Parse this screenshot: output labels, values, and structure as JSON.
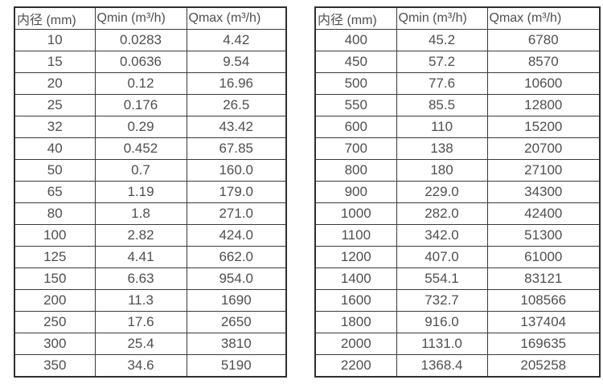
{
  "colors": {
    "background": "#ffffff",
    "table_border": "#2f2f2f",
    "grid_line": "#3a3a3a",
    "text": "#4f4f4f"
  },
  "tables": [
    {
      "name": "flow-rate-table-small-diameters",
      "headers": [
        "内径 (mm)",
        "Qmin (m³/h)",
        "Qmax (m³/h)"
      ],
      "rows": [
        [
          "10",
          "0.0283",
          "4.42"
        ],
        [
          "15",
          "0.0636",
          "9.54"
        ],
        [
          "20",
          "0.12",
          "16.96"
        ],
        [
          "25",
          "0.176",
          "26.5"
        ],
        [
          "32",
          "0.29",
          "43.42"
        ],
        [
          "40",
          "0.452",
          "67.85"
        ],
        [
          "50",
          "0.7",
          "160.0"
        ],
        [
          "65",
          "1.19",
          "179.0"
        ],
        [
          "80",
          "1.8",
          "271.0"
        ],
        [
          "100",
          "2.82",
          "424.0"
        ],
        [
          "125",
          "4.41",
          "662.0"
        ],
        [
          "150",
          "6.63",
          "954.0"
        ],
        [
          "200",
          "11.3",
          "1690"
        ],
        [
          "250",
          "17.6",
          "2650"
        ],
        [
          "300",
          "25.4",
          "3810"
        ],
        [
          "350",
          "34.6",
          "5190"
        ]
      ]
    },
    {
      "name": "flow-rate-table-large-diameters",
      "headers": [
        "内径 (mm)",
        "Qmin (m³/h)",
        "Qmax (m³/h)"
      ],
      "rows": [
        [
          "400",
          "45.2",
          "6780"
        ],
        [
          "450",
          "57.2",
          "8570"
        ],
        [
          "500",
          "77.6",
          "10600"
        ],
        [
          "550",
          "85.5",
          "12800"
        ],
        [
          "600",
          "110",
          "15200"
        ],
        [
          "700",
          "138",
          "20700"
        ],
        [
          "800",
          "180",
          "27100"
        ],
        [
          "900",
          "229.0",
          "34300"
        ],
        [
          "1000",
          "282.0",
          "42400"
        ],
        [
          "1100",
          "342.0",
          "51300"
        ],
        [
          "1200",
          "407.0",
          "61000"
        ],
        [
          "1400",
          "554.1",
          "83121"
        ],
        [
          "1600",
          "732.7",
          "108566"
        ],
        [
          "1800",
          "916.0",
          "137404"
        ],
        [
          "2000",
          "1131.0",
          "169635"
        ],
        [
          "2200",
          "1368.4",
          "205258"
        ]
      ]
    }
  ]
}
